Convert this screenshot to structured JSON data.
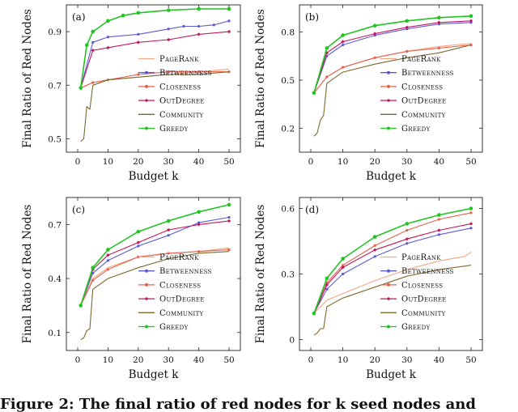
{
  "caption": "Figure 2: The final ratio of red nodes for k seed nodes and",
  "legend_labels": [
    "PageRank",
    "Betweenness",
    "Closeness",
    "OutDegree",
    "Community",
    "Greedy"
  ],
  "colors": {
    "PageRank": "#f4a582",
    "Betweenness": "#5b5bd6",
    "Closeness": "#e8604c",
    "OutDegree": "#c2185b",
    "Community": "#7b6a2e",
    "Greedy": "#22c422"
  },
  "chart_data": [
    {
      "type": "line",
      "panel_label": "(a)",
      "xlabel": "Budget k",
      "ylabel": "Final Ratio of Red Nodes",
      "xlim": [
        0,
        50
      ],
      "ylim": [
        0.45,
        1.0
      ],
      "xticks": [
        0,
        10,
        20,
        30,
        40,
        50
      ],
      "yticks": [
        0.5,
        0.7,
        0.9
      ],
      "legend_position": "lower-right",
      "series": [
        {
          "name": "PageRank",
          "x": [
            1,
            5,
            10,
            20,
            30,
            40,
            50
          ],
          "y": [
            0.69,
            0.71,
            0.72,
            0.73,
            0.74,
            0.75,
            0.76
          ]
        },
        {
          "name": "Betweenness",
          "x": [
            1,
            5,
            10,
            20,
            30,
            35,
            40,
            45,
            50
          ],
          "y": [
            0.69,
            0.86,
            0.88,
            0.89,
            0.91,
            0.92,
            0.92,
            0.925,
            0.94
          ]
        },
        {
          "name": "Closeness",
          "x": [
            1,
            5,
            10,
            20,
            30,
            40,
            50
          ],
          "y": [
            0.69,
            0.71,
            0.72,
            0.74,
            0.75,
            0.75,
            0.75
          ]
        },
        {
          "name": "OutDegree",
          "x": [
            1,
            5,
            10,
            20,
            30,
            40,
            50
          ],
          "y": [
            0.69,
            0.83,
            0.84,
            0.86,
            0.87,
            0.89,
            0.9
          ]
        },
        {
          "name": "Community",
          "x": [
            1,
            2,
            3,
            4,
            5,
            10,
            20,
            30,
            40,
            50
          ],
          "y": [
            0.49,
            0.5,
            0.62,
            0.61,
            0.7,
            0.72,
            0.73,
            0.74,
            0.74,
            0.75
          ]
        },
        {
          "name": "Greedy",
          "x": [
            1,
            3,
            5,
            10,
            15,
            20,
            30,
            40,
            50
          ],
          "y": [
            0.69,
            0.85,
            0.9,
            0.94,
            0.96,
            0.97,
            0.98,
            0.985,
            0.985
          ]
        }
      ]
    },
    {
      "type": "line",
      "panel_label": "(b)",
      "xlabel": "Budget k",
      "ylabel": "Final Ratio of Red Nodes",
      "xlim": [
        0,
        50
      ],
      "ylim": [
        0.05,
        0.97
      ],
      "xticks": [
        0,
        10,
        20,
        30,
        40,
        50
      ],
      "yticks": [
        0.2,
        0.5,
        0.8
      ],
      "legend_position": "lower-right",
      "series": [
        {
          "name": "PageRank",
          "x": [
            1,
            5,
            10,
            20,
            30,
            40,
            50
          ],
          "y": [
            0.42,
            0.52,
            0.58,
            0.64,
            0.68,
            0.71,
            0.73
          ]
        },
        {
          "name": "Betweenness",
          "x": [
            1,
            5,
            10,
            20,
            30,
            40,
            50
          ],
          "y": [
            0.42,
            0.65,
            0.72,
            0.78,
            0.82,
            0.85,
            0.86
          ]
        },
        {
          "name": "Closeness",
          "x": [
            1,
            5,
            10,
            20,
            30,
            40,
            50
          ],
          "y": [
            0.42,
            0.52,
            0.58,
            0.64,
            0.68,
            0.7,
            0.72
          ]
        },
        {
          "name": "OutDegree",
          "x": [
            1,
            5,
            10,
            20,
            30,
            40,
            50
          ],
          "y": [
            0.42,
            0.67,
            0.74,
            0.79,
            0.83,
            0.86,
            0.87
          ]
        },
        {
          "name": "Community",
          "x": [
            1,
            2,
            3,
            4,
            5,
            10,
            20,
            30,
            40,
            50
          ],
          "y": [
            0.15,
            0.17,
            0.25,
            0.28,
            0.48,
            0.55,
            0.6,
            0.64,
            0.67,
            0.72
          ]
        },
        {
          "name": "Greedy",
          "x": [
            1,
            5,
            10,
            20,
            30,
            40,
            50
          ],
          "y": [
            0.42,
            0.7,
            0.78,
            0.84,
            0.87,
            0.89,
            0.9
          ]
        }
      ]
    },
    {
      "type": "line",
      "panel_label": "(c)",
      "xlabel": "Budget k",
      "ylabel": "Final Ratio of Red Nodes",
      "xlim": [
        0,
        50
      ],
      "ylim": [
        0.0,
        0.85
      ],
      "xticks": [
        0,
        10,
        20,
        30,
        40,
        50
      ],
      "yticks": [
        0.1,
        0.4,
        0.7
      ],
      "legend_position": "lower-right",
      "series": [
        {
          "name": "PageRank",
          "x": [
            1,
            5,
            10,
            20,
            30,
            40,
            50
          ],
          "y": [
            0.25,
            0.4,
            0.46,
            0.52,
            0.54,
            0.55,
            0.57
          ]
        },
        {
          "name": "Betweenness",
          "x": [
            1,
            5,
            10,
            20,
            30,
            40,
            50
          ],
          "y": [
            0.25,
            0.43,
            0.5,
            0.58,
            0.64,
            0.71,
            0.74
          ]
        },
        {
          "name": "Closeness",
          "x": [
            1,
            5,
            10,
            20,
            30,
            40,
            50
          ],
          "y": [
            0.25,
            0.39,
            0.45,
            0.52,
            0.54,
            0.55,
            0.56
          ]
        },
        {
          "name": "OutDegree",
          "x": [
            1,
            5,
            10,
            20,
            30,
            40,
            50
          ],
          "y": [
            0.25,
            0.45,
            0.53,
            0.6,
            0.67,
            0.7,
            0.72
          ]
        },
        {
          "name": "Community",
          "x": [
            1,
            2,
            3,
            4,
            5,
            10,
            20,
            30,
            40,
            50
          ],
          "y": [
            0.06,
            0.07,
            0.11,
            0.12,
            0.34,
            0.4,
            0.46,
            0.51,
            0.54,
            0.55
          ]
        },
        {
          "name": "Greedy",
          "x": [
            1,
            5,
            10,
            20,
            30,
            40,
            50
          ],
          "y": [
            0.25,
            0.46,
            0.56,
            0.66,
            0.72,
            0.77,
            0.81
          ]
        }
      ]
    },
    {
      "type": "line",
      "panel_label": "(d)",
      "xlabel": "Budget k",
      "ylabel": "Final Ratio of Red Nodes",
      "xlim": [
        0,
        50
      ],
      "ylim": [
        -0.05,
        0.65
      ],
      "xticks": [
        0,
        10,
        20,
        30,
        40,
        50
      ],
      "yticks": [
        0,
        0.3,
        0.6
      ],
      "legend_position": "lower-right",
      "series": [
        {
          "name": "PageRank",
          "x": [
            1,
            5,
            10,
            20,
            30,
            40,
            48,
            50
          ],
          "y": [
            0.12,
            0.18,
            0.21,
            0.27,
            0.32,
            0.36,
            0.38,
            0.4
          ]
        },
        {
          "name": "Betweenness",
          "x": [
            1,
            5,
            10,
            20,
            30,
            40,
            50
          ],
          "y": [
            0.12,
            0.23,
            0.3,
            0.38,
            0.44,
            0.48,
            0.51
          ]
        },
        {
          "name": "Closeness",
          "x": [
            1,
            5,
            10,
            20,
            30,
            40,
            50
          ],
          "y": [
            0.12,
            0.26,
            0.34,
            0.43,
            0.5,
            0.55,
            0.58
          ]
        },
        {
          "name": "OutDegree",
          "x": [
            1,
            5,
            10,
            20,
            30,
            40,
            50
          ],
          "y": [
            0.12,
            0.25,
            0.33,
            0.41,
            0.46,
            0.5,
            0.53
          ]
        },
        {
          "name": "Community",
          "x": [
            1,
            2,
            3,
            4,
            5,
            10,
            20,
            30,
            40,
            50
          ],
          "y": [
            0.02,
            0.03,
            0.05,
            0.05,
            0.15,
            0.19,
            0.24,
            0.29,
            0.32,
            0.34
          ]
        },
        {
          "name": "Greedy",
          "x": [
            1,
            5,
            10,
            20,
            30,
            40,
            50
          ],
          "y": [
            0.12,
            0.28,
            0.37,
            0.47,
            0.53,
            0.57,
            0.6
          ]
        }
      ]
    }
  ]
}
